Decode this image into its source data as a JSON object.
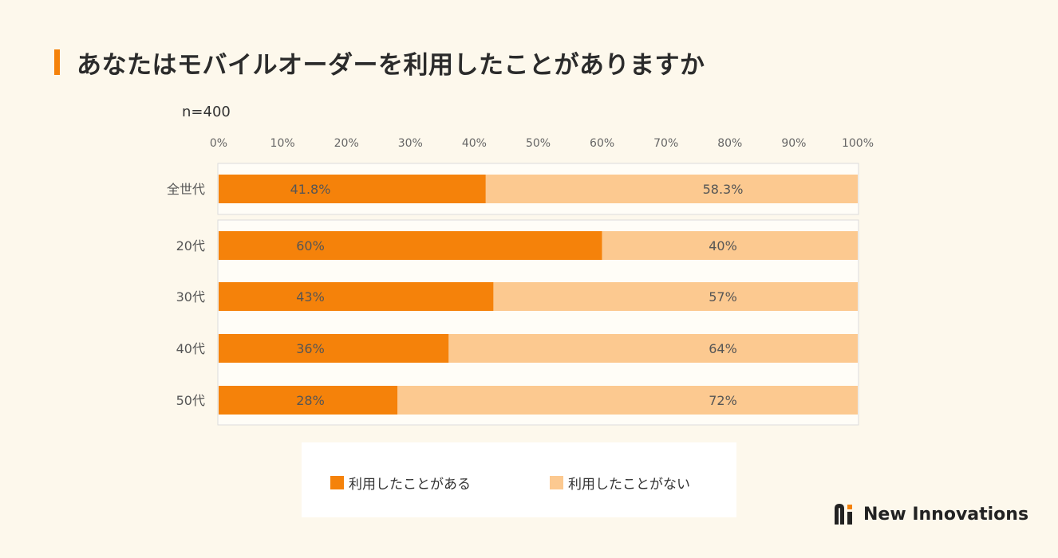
{
  "title": "あなたはモバイルオーダーを利用したことがありますか",
  "sample_label": "n=400",
  "colors": {
    "accent": "#f5820a",
    "used": "#f5820a",
    "not_used": "#fcc990"
  },
  "chart_data": {
    "type": "bar",
    "orientation": "horizontal",
    "stacked": true,
    "percent": true,
    "categories": [
      "全世代",
      "20代",
      "30代",
      "40代",
      "50代"
    ],
    "series": [
      {
        "name": "利用したことがある",
        "values": [
          41.8,
          60,
          43,
          36,
          28
        ],
        "labels": [
          "41.8%",
          "60%",
          "43%",
          "36%",
          "28%"
        ]
      },
      {
        "name": "利用したことがない",
        "values": [
          58.3,
          40,
          57,
          64,
          72
        ],
        "labels": [
          "58.3%",
          "40%",
          "57%",
          "64%",
          "72%"
        ]
      }
    ],
    "xlim": [
      0,
      100
    ],
    "xticks": [
      "0%",
      "10%",
      "20%",
      "30%",
      "40%",
      "50%",
      "60%",
      "70%",
      "80%",
      "90%",
      "100%"
    ],
    "legend_position": "bottom"
  },
  "legend": {
    "used": "利用したことがある",
    "not_used": "利用したことがない"
  },
  "logo": {
    "text": "New Innovations"
  }
}
